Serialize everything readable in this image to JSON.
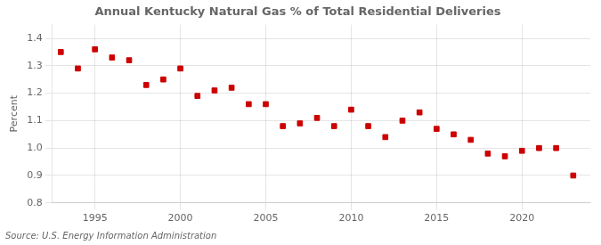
{
  "chart_data": {
    "type": "scatter",
    "title": "Annual Kentucky Natural Gas % of Total Residential Deliveries",
    "ylabel": "Percent",
    "annotation": "Source: U.S. Energy Information Administration",
    "x": [
      1993,
      1994,
      1995,
      1996,
      1997,
      1998,
      1999,
      2000,
      2001,
      2002,
      2003,
      2004,
      2005,
      2006,
      2007,
      2008,
      2009,
      2010,
      2011,
      2012,
      2013,
      2014,
      2015,
      2016,
      2017,
      2018,
      2019,
      2020,
      2021,
      2022,
      2023
    ],
    "values": [
      1.35,
      1.29,
      1.36,
      1.33,
      1.32,
      1.23,
      1.25,
      1.29,
      1.19,
      1.21,
      1.22,
      1.16,
      1.16,
      1.08,
      1.09,
      1.11,
      1.08,
      1.14,
      1.08,
      1.04,
      1.1,
      1.13,
      1.07,
      1.05,
      1.03,
      0.98,
      0.97,
      0.99,
      1.0,
      1.0,
      0.9
    ],
    "color": "#cc0000",
    "marker": "square",
    "xlim": [
      1992.5,
      2024
    ],
    "xticks": [
      1995,
      2000,
      2005,
      2010,
      2015,
      2020
    ],
    "ylim": [
      0.8,
      1.45
    ],
    "yticks": [
      0.8,
      0.9,
      {
        "value": 1.0,
        "label": "1.0"
      },
      1.1,
      1.2,
      1.3,
      1.4
    ],
    "grid": true
  }
}
